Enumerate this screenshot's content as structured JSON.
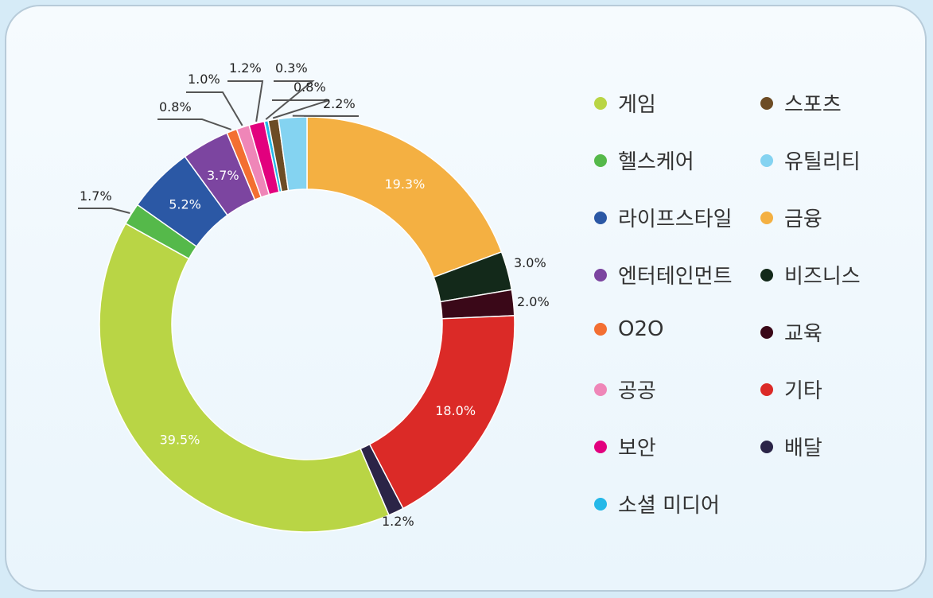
{
  "chart_data": {
    "type": "pie",
    "donut": true,
    "categories": [
      "금융",
      "비즈니스",
      "교육",
      "기타",
      "배달",
      "게임",
      "헬스케어",
      "라이프스타일",
      "엔터테인먼트",
      "O2O",
      "공공",
      "보안",
      "소셜 미디어",
      "스포츠",
      "유틸리티"
    ],
    "values": [
      19.3,
      3.0,
      2.0,
      18.0,
      1.2,
      39.5,
      1.7,
      5.2,
      3.7,
      0.8,
      1.0,
      1.2,
      0.3,
      0.8,
      2.2
    ],
    "value_labels": [
      "19.3%",
      "3.0%",
      "2.0%",
      "18.0%",
      "1.2%",
      "39.5%",
      "1.7%",
      "5.2%",
      "3.7%",
      "0.8%",
      "1.0%",
      "1.2%",
      "0.3%",
      "0.8%",
      "2.2%"
    ],
    "colors": [
      "#f4b042",
      "#13291a",
      "#3a0818",
      "#db2a27",
      "#2b2447",
      "#b9d545",
      "#55b94a",
      "#2b58a5",
      "#7c45a0",
      "#f36f32",
      "#ef86b8",
      "#e2007e",
      "#25b8e8",
      "#6d4c25",
      "#84d3f1"
    ],
    "start": "12 o'clock",
    "direction": "clockwise",
    "legend": {
      "position": "right",
      "order": [
        "게임",
        "스포츠",
        "헬스케어",
        "유틸리티",
        "라이프스타일",
        "금융",
        "엔터테인먼트",
        "비즈니스",
        "O2O",
        "교육",
        "공공",
        "기타",
        "보안",
        "배달",
        "소셜 미디어"
      ]
    }
  }
}
